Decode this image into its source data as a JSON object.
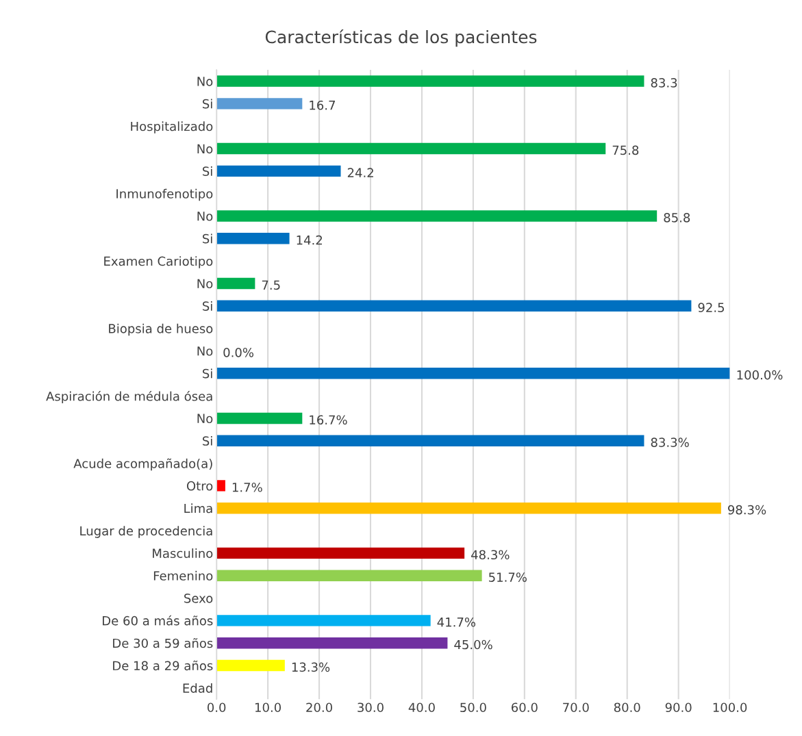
{
  "chart_data": {
    "type": "bar",
    "orientation": "horizontal",
    "title": "Características de los pacientes",
    "categories": [
      "No",
      "Si",
      "Hospitalizado",
      "No",
      "Si",
      "Inmunofenotipo",
      "No",
      "Si",
      "Examen Cariotipo",
      "No",
      "Si",
      "Biopsia de hueso",
      "No",
      "Si",
      "Aspiración de médula ósea",
      "No",
      "Si",
      "Acude acompañado(a)",
      "Otro",
      "Lima",
      "Lugar de procedencia",
      "Masculino",
      "Femenino",
      "Sexo",
      "De 60 a más años",
      "De 30 a 59 años",
      "De 18 a 29 años",
      "Edad"
    ],
    "values": [
      83.3,
      16.7,
      null,
      75.8,
      24.2,
      null,
      85.8,
      14.2,
      null,
      7.5,
      92.5,
      null,
      0,
      100,
      null,
      16.7,
      83.3,
      null,
      1.7,
      98.3,
      null,
      48.3,
      51.7,
      null,
      41.7,
      45,
      13.3,
      null
    ],
    "colors": [
      "#00b050",
      "#5b9bd5",
      null,
      "#00b050",
      "#0070c0",
      null,
      "#00b050",
      "#0070c0",
      null,
      "#00b050",
      "#0070c0",
      null,
      "#00b050",
      "#0070c0",
      null,
      "#00b050",
      "#0070c0",
      null,
      "#ff0000",
      "#ffc000",
      null,
      "#c00000",
      "#92d050",
      null,
      "#00b0f0",
      "#7030a0",
      "#ffff00",
      null
    ],
    "value_labels": [
      "83.3",
      "16.7",
      null,
      "75.8",
      "24.2",
      null,
      "85.8",
      "14.2",
      null,
      "7.5",
      "92.5",
      null,
      "0.0%",
      "100.0%",
      null,
      "16.7%",
      "83.3%",
      null,
      "1.7%",
      "98.3%",
      null,
      "48.3%",
      "51.7%",
      null,
      "41.7%",
      "45.0%",
      "13.3%",
      null
    ],
    "xlim": [
      0,
      100
    ],
    "xticks": [
      {
        "value": 0,
        "label": "0.0"
      },
      {
        "value": 10,
        "label": "10.0"
      },
      {
        "value": 20,
        "label": "20.0"
      },
      {
        "value": 30,
        "label": "30.0"
      },
      {
        "value": 40,
        "label": "40.0"
      },
      {
        "value": 50,
        "label": "50.0"
      },
      {
        "value": 60,
        "label": "60.0"
      },
      {
        "value": 70,
        "label": "70.0"
      },
      {
        "value": 80,
        "label": "80.0"
      },
      {
        "value": 90,
        "label": "90.0"
      },
      {
        "value": 100,
        "label": "100.0"
      }
    ],
    "grid": "x"
  }
}
